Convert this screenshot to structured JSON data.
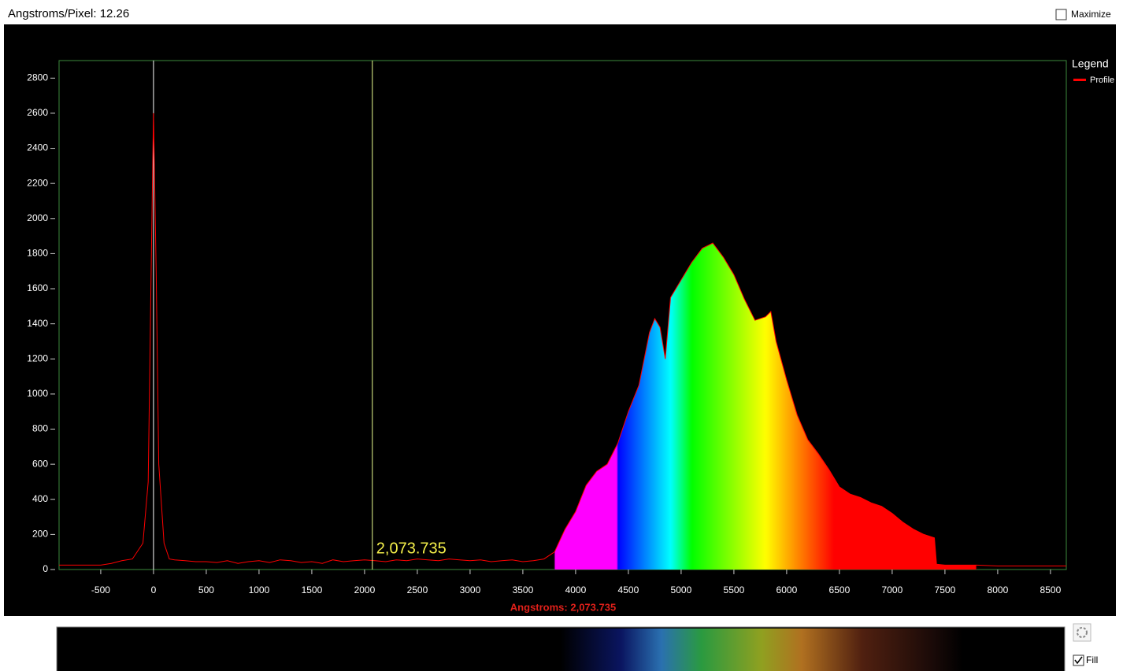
{
  "header": {
    "title": "Angstroms/Pixel: 12.26",
    "maximize": {
      "label": "Maximize",
      "checked": false
    }
  },
  "chart_data": {
    "type": "line",
    "legend_title": "Legend",
    "x": [
      -895,
      -800,
      -700,
      -600,
      -500,
      -400,
      -300,
      -200,
      -100,
      -50,
      -25,
      0,
      25,
      50,
      100,
      150,
      200,
      300,
      400,
      500,
      600,
      700,
      800,
      900,
      1000,
      1100,
      1200,
      1300,
      1400,
      1500,
      1600,
      1700,
      1800,
      1900,
      2000,
      2100,
      2200,
      2300,
      2400,
      2500,
      2600,
      2700,
      2800,
      2900,
      3000,
      3100,
      3200,
      3300,
      3400,
      3500,
      3600,
      3700,
      3800,
      3900,
      4000,
      4100,
      4200,
      4300,
      4400,
      4500,
      4600,
      4700,
      4750,
      4800,
      4850,
      4900,
      5000,
      5100,
      5200,
      5300,
      5400,
      5500,
      5600,
      5700,
      5800,
      5850,
      5900,
      6000,
      6100,
      6200,
      6300,
      6400,
      6500,
      6600,
      6700,
      6800,
      6900,
      7000,
      7100,
      7200,
      7300,
      7400,
      7420,
      7500,
      7800,
      8000,
      8500,
      8650
    ],
    "series": [
      {
        "name": "Profile",
        "color": "#ff0000",
        "values": [
          25,
          25,
          25,
          25,
          25,
          35,
          50,
          60,
          150,
          500,
          1600,
          2600,
          1700,
          600,
          150,
          60,
          55,
          50,
          45,
          45,
          40,
          50,
          35,
          45,
          50,
          40,
          55,
          50,
          40,
          45,
          35,
          55,
          45,
          50,
          55,
          50,
          45,
          55,
          50,
          60,
          55,
          50,
          60,
          55,
          50,
          55,
          45,
          50,
          55,
          45,
          50,
          60,
          100,
          230,
          330,
          480,
          560,
          600,
          720,
          900,
          1050,
          1350,
          1430,
          1380,
          1200,
          1550,
          1650,
          1750,
          1830,
          1860,
          1780,
          1680,
          1540,
          1420,
          1440,
          1470,
          1300,
          1080,
          880,
          740,
          660,
          570,
          470,
          430,
          410,
          380,
          360,
          320,
          270,
          230,
          200,
          180,
          30,
          25,
          25,
          20,
          20,
          20
        ]
      }
    ],
    "xlim": [
      -895,
      8650
    ],
    "ylim": [
      0,
      2900
    ],
    "xticks": [
      -500,
      0,
      500,
      1000,
      1500,
      2000,
      2500,
      3000,
      3500,
      4000,
      4500,
      5000,
      5500,
      6000,
      6500,
      7000,
      7500,
      8000,
      8500
    ],
    "yticks": [
      0,
      200,
      400,
      600,
      800,
      1000,
      1200,
      1400,
      1600,
      1800,
      2000,
      2200,
      2400,
      2600,
      2800
    ],
    "cursor": {
      "value": 2073.735,
      "label": "2,073.735"
    },
    "x_label": "Angstroms: 2,073.735",
    "reference_x": 0
  },
  "controls": {
    "fill": {
      "label": "Fill",
      "checked": true
    }
  }
}
